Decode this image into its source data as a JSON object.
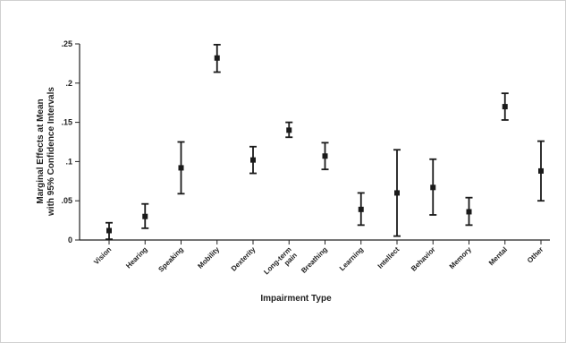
{
  "chart_data": {
    "type": "scatter",
    "subtype": "point-with-error-bars",
    "title": "",
    "xlabel": "Impairment Type",
    "ylabel_lines": [
      "Marginal Effects at Mean",
      "with 95% Confidence Intervals"
    ],
    "ylim": [
      0,
      0.25
    ],
    "yticks": [
      {
        "value": 0,
        "label": "0"
      },
      {
        "value": 0.05,
        "label": ".05"
      },
      {
        "value": 0.1,
        "label": ".1"
      },
      {
        "value": 0.15,
        "label": ".15"
      },
      {
        "value": 0.2,
        "label": ".2"
      },
      {
        "value": 0.25,
        "label": ".25"
      }
    ],
    "grid": false,
    "categories": [
      {
        "label": "Vision",
        "lines": [
          "Vision"
        ],
        "estimate": 0.012,
        "lower": 0.001,
        "upper": 0.022
      },
      {
        "label": "Hearing",
        "lines": [
          "Hearing"
        ],
        "estimate": 0.03,
        "lower": 0.015,
        "upper": 0.046
      },
      {
        "label": "Speaking",
        "lines": [
          "Speaking"
        ],
        "estimate": 0.092,
        "lower": 0.059,
        "upper": 0.125
      },
      {
        "label": "Mobility",
        "lines": [
          "Mobility"
        ],
        "estimate": 0.232,
        "lower": 0.214,
        "upper": 0.249
      },
      {
        "label": "Dexterity",
        "lines": [
          "Dexterity"
        ],
        "estimate": 0.102,
        "lower": 0.085,
        "upper": 0.119
      },
      {
        "label": "Long-term pain",
        "lines": [
          "Long-term",
          "pain"
        ],
        "estimate": 0.14,
        "lower": 0.131,
        "upper": 0.15
      },
      {
        "label": "Breathing",
        "lines": [
          "Breathing"
        ],
        "estimate": 0.107,
        "lower": 0.09,
        "upper": 0.124
      },
      {
        "label": "Learning",
        "lines": [
          "Learning"
        ],
        "estimate": 0.039,
        "lower": 0.019,
        "upper": 0.06
      },
      {
        "label": "Intellect",
        "lines": [
          "Intellect"
        ],
        "estimate": 0.06,
        "lower": 0.005,
        "upper": 0.115
      },
      {
        "label": "Behavior",
        "lines": [
          "Behavior"
        ],
        "estimate": 0.067,
        "lower": 0.032,
        "upper": 0.103
      },
      {
        "label": "Memory",
        "lines": [
          "Memory"
        ],
        "estimate": 0.036,
        "lower": 0.019,
        "upper": 0.054
      },
      {
        "label": "Mental",
        "lines": [
          "Mental"
        ],
        "estimate": 0.17,
        "lower": 0.153,
        "upper": 0.187
      },
      {
        "label": "Other",
        "lines": [
          "Other"
        ],
        "estimate": 0.088,
        "lower": 0.05,
        "upper": 0.126
      }
    ],
    "colors": {
      "marks": "#1a1a1a",
      "axis": "#222222"
    }
  }
}
